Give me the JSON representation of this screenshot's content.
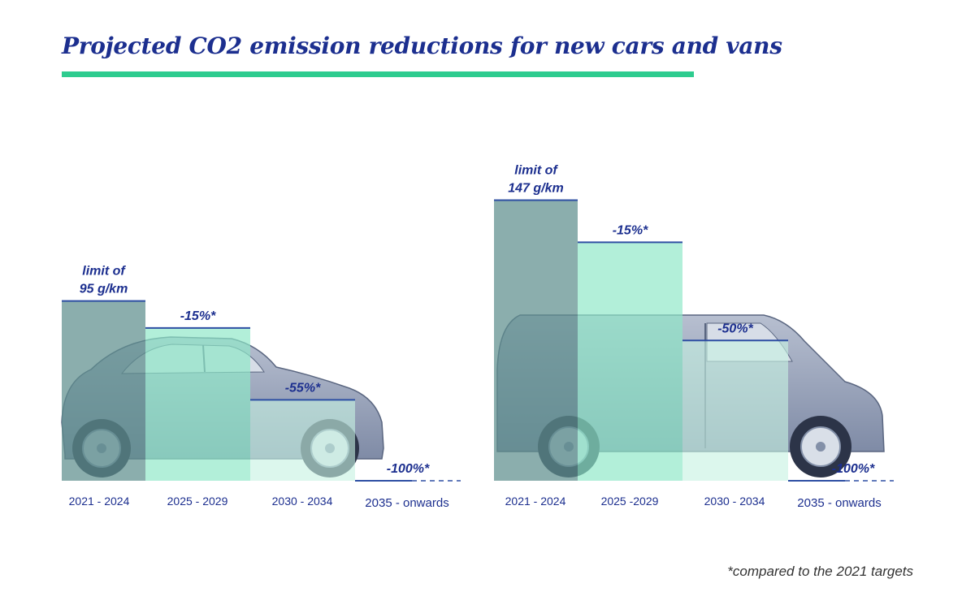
{
  "title": "Projected CO2 emission reductions for new cars and vans",
  "footnote": "*compared to the 2021 targets",
  "colors": {
    "title": "#1c2f8f",
    "title_rule": "#2ecc8f",
    "period1_bar": "#5e8f8e",
    "period2_bar": "#8ee8c7",
    "period3_bar": "#c6f2e2",
    "line": "#2e4fa3",
    "label": "#1c2f8f"
  },
  "chart_data": [
    {
      "type": "bar",
      "vehicle": "car",
      "categories": [
        "2021 - 2024",
        "2025 - 2029",
        "2030 - 2034",
        "2035 - onwards"
      ],
      "values": [
        95,
        80.75,
        42.75,
        0
      ],
      "labels": [
        "limit of\n95 g/km",
        "-15%*",
        "-55%*",
        "-100%*"
      ],
      "unit": "g/km",
      "ylim": [
        0,
        95
      ],
      "grid": false
    },
    {
      "type": "bar",
      "vehicle": "van",
      "categories": [
        "2021 - 2024",
        "2025 -2029",
        "2030 - 2034",
        "2035 - onwards"
      ],
      "values": [
        147,
        124.95,
        73.5,
        0
      ],
      "labels": [
        "limit of\n147 g/km",
        "-15%*",
        "-50%*",
        "-100%*"
      ],
      "unit": "g/km",
      "ylim": [
        0,
        147
      ],
      "grid": false
    }
  ]
}
